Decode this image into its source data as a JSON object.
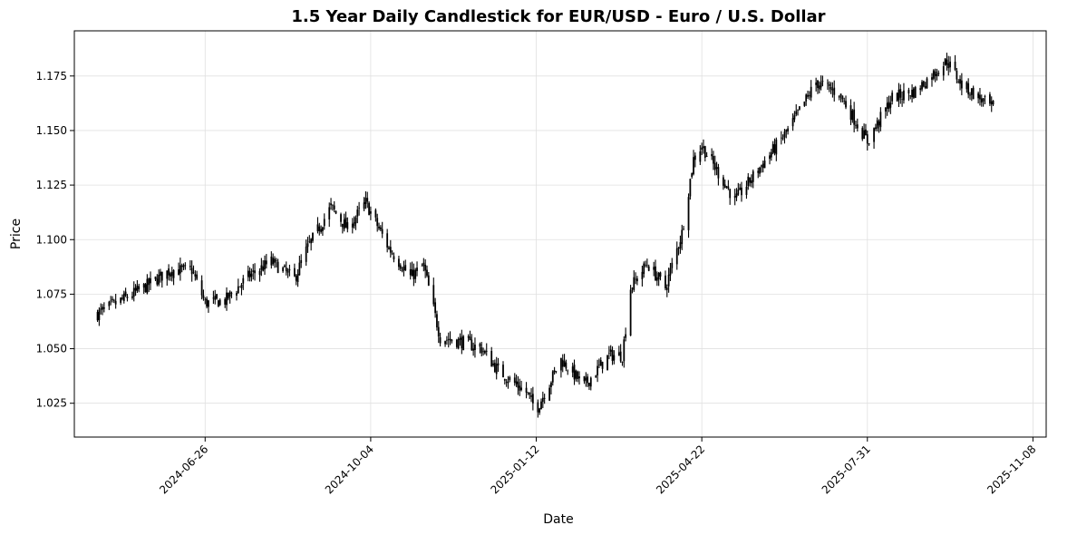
{
  "chart_data": {
    "type": "candlestick",
    "title": "1.5 Year Daily Candlestick for EUR/USD - Euro / U.S. Dollar",
    "xlabel": "Date",
    "ylabel": "Price",
    "x_ticks": [
      "2024-06-26",
      "2024-10-04",
      "2025-01-12",
      "2025-04-22",
      "2025-07-31",
      "2025-11-08"
    ],
    "y_ticks": [
      "1.025",
      "1.050",
      "1.075",
      "1.100",
      "1.125",
      "1.150",
      "1.175"
    ],
    "ylim": [
      1.0095,
      1.1957
    ],
    "xlim": [
      "2024-04-08",
      "2025-11-16"
    ],
    "grid": true,
    "colors": {
      "candle": "#000000",
      "grid": "#e0e0e0"
    },
    "anchors": [
      [
        "2024-04-22",
        1.066
      ],
      [
        "2024-05-06",
        1.072
      ],
      [
        "2024-05-20",
        1.078
      ],
      [
        "2024-06-05",
        1.086
      ],
      [
        "2024-06-18",
        1.086
      ],
      [
        "2024-06-26",
        1.071
      ],
      [
        "2024-07-08",
        1.072
      ],
      [
        "2024-07-22",
        1.083
      ],
      [
        "2024-08-05",
        1.09
      ],
      [
        "2024-08-19",
        1.082
      ],
      [
        "2024-08-26",
        1.095
      ],
      [
        "2024-09-10",
        1.115
      ],
      [
        "2024-09-20",
        1.105
      ],
      [
        "2024-10-01",
        1.117
      ],
      [
        "2024-10-15",
        1.096
      ],
      [
        "2024-10-28",
        1.083
      ],
      [
        "2024-11-05",
        1.088
      ],
      [
        "2024-11-15",
        1.055
      ],
      [
        "2024-11-29",
        1.053
      ],
      [
        "2024-12-10",
        1.05
      ],
      [
        "2024-12-20",
        1.04
      ],
      [
        "2025-01-06",
        1.03
      ],
      [
        "2025-01-12",
        1.022
      ],
      [
        "2025-01-27",
        1.045
      ],
      [
        "2025-02-10",
        1.033
      ],
      [
        "2025-02-25",
        1.047
      ],
      [
        "2025-03-05",
        1.047
      ],
      [
        "2025-03-10",
        1.078
      ],
      [
        "2025-03-20",
        1.089
      ],
      [
        "2025-03-31",
        1.078
      ],
      [
        "2025-04-10",
        1.103
      ],
      [
        "2025-04-17",
        1.137
      ],
      [
        "2025-04-22",
        1.143
      ],
      [
        "2025-05-12",
        1.118
      ],
      [
        "2025-05-30",
        1.136
      ],
      [
        "2025-06-13",
        1.15
      ],
      [
        "2025-06-30",
        1.172
      ],
      [
        "2025-07-14",
        1.167
      ],
      [
        "2025-07-31",
        1.145
      ],
      [
        "2025-08-15",
        1.165
      ],
      [
        "2025-08-29",
        1.168
      ],
      [
        "2025-09-17",
        1.182
      ],
      [
        "2025-09-26",
        1.171
      ],
      [
        "2025-10-15",
        1.16
      ]
    ]
  }
}
